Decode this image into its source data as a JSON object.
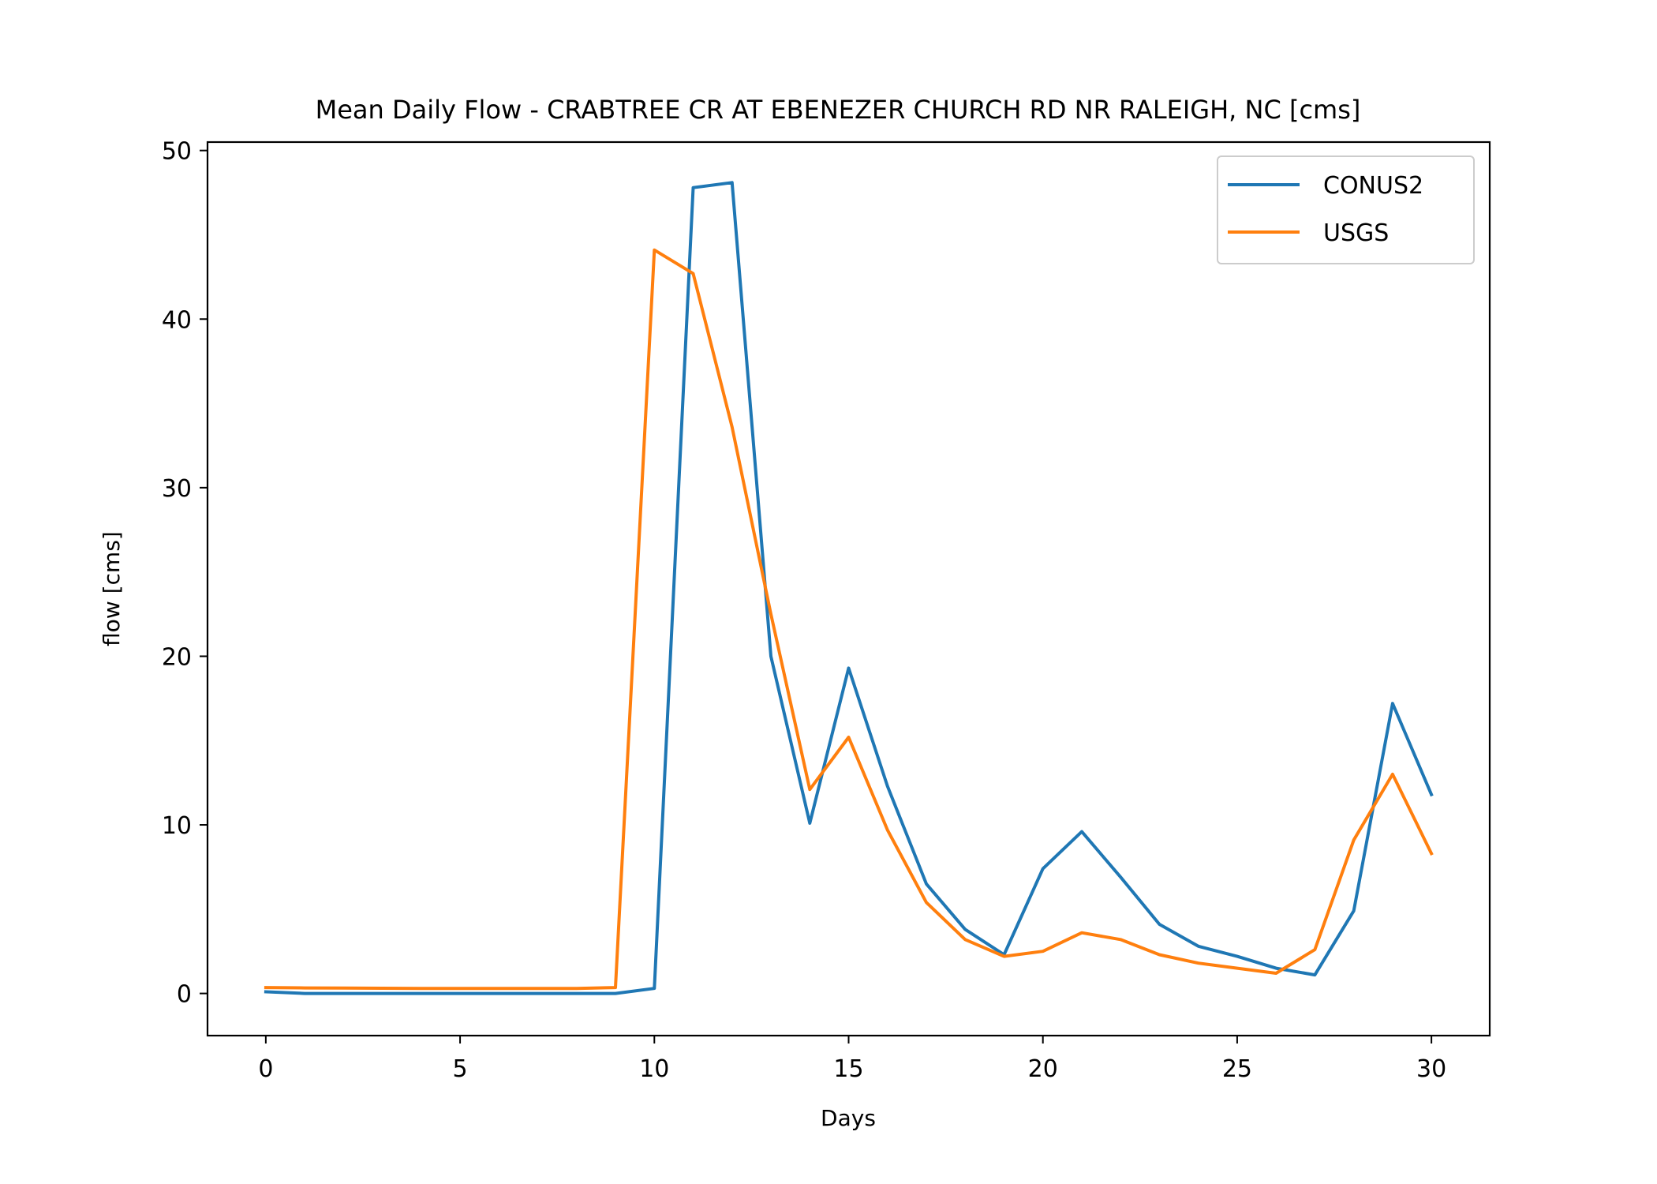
{
  "chart_data": {
    "type": "line",
    "title": "Mean Daily Flow - CRABTREE CR AT EBENEZER CHURCH RD NR RALEIGH, NC [cms]",
    "xlabel": "Days",
    "ylabel": "flow [cms]",
    "xlim": [
      -1.5,
      31.5
    ],
    "ylim": [
      -2.5,
      50.5
    ],
    "xticks": [
      0,
      5,
      10,
      15,
      20,
      25,
      30
    ],
    "yticks": [
      0,
      10,
      20,
      30,
      40,
      50
    ],
    "grid": false,
    "legend_position": "top-right",
    "x": [
      0,
      1,
      2,
      3,
      4,
      5,
      6,
      7,
      8,
      9,
      10,
      11,
      12,
      13,
      14,
      15,
      16,
      17,
      18,
      19,
      20,
      21,
      22,
      23,
      24,
      25,
      26,
      27,
      28,
      29,
      30
    ],
    "series": [
      {
        "name": "CONUS2",
        "color": "#1f77b4",
        "values": [
          0.1,
          0.0,
          0.0,
          0.0,
          0.0,
          0.0,
          0.0,
          0.0,
          0.0,
          0.0,
          0.3,
          47.8,
          48.1,
          20.0,
          10.1,
          19.3,
          12.3,
          6.5,
          3.8,
          2.3,
          7.4,
          9.6,
          6.9,
          4.1,
          2.8,
          2.2,
          1.5,
          1.1,
          4.9,
          17.2,
          11.8
        ]
      },
      {
        "name": "USGS",
        "color": "#ff7f0e",
        "values": [
          0.35,
          0.33,
          0.32,
          0.31,
          0.3,
          0.3,
          0.3,
          0.3,
          0.3,
          0.35,
          44.1,
          42.7,
          33.6,
          22.5,
          12.1,
          15.2,
          9.7,
          5.4,
          3.2,
          2.2,
          2.5,
          3.6,
          3.2,
          2.3,
          1.8,
          1.5,
          1.2,
          2.6,
          9.1,
          13.0,
          8.3
        ]
      }
    ]
  }
}
